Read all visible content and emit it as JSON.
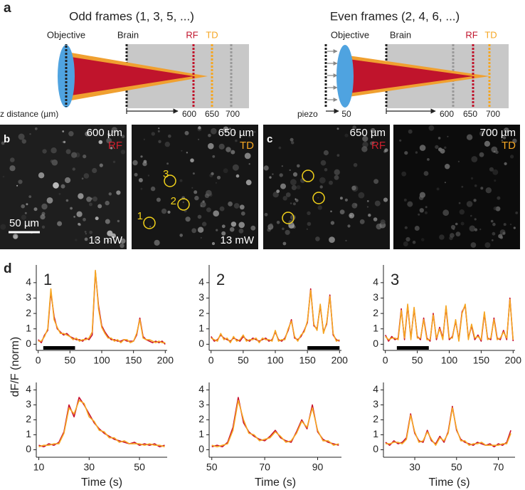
{
  "panel_a": {
    "label": "a",
    "odd": {
      "title": "Odd frames (1, 3, 5, ...)",
      "objective": "Objective",
      "brain": "Brain",
      "rf": "RF",
      "td": "TD",
      "axis_label": "z distance (µm)",
      "ticks": [
        "600",
        "650",
        "700"
      ]
    },
    "even": {
      "title": "Even frames (2, 4, 6, ...)",
      "objective": "Objective",
      "brain": "Brain",
      "rf": "RF",
      "td": "TD",
      "axis_label": "piezo",
      "ticks": [
        "50",
        "600",
        "650",
        "700"
      ]
    }
  },
  "panel_b": {
    "label": "b",
    "images": [
      {
        "depth": "600 µm",
        "channel": "RF",
        "power": "13 mW",
        "scale": "50 µm"
      },
      {
        "depth": "650 µm",
        "channel": "TD",
        "power": "13 mW",
        "rois": [
          "1",
          "2",
          "3"
        ]
      }
    ]
  },
  "panel_c": {
    "label": "c",
    "images": [
      {
        "depth": "650 µm",
        "channel": "RF"
      },
      {
        "depth": "700 µm",
        "channel": "TD"
      }
    ]
  },
  "panel_d": {
    "label": "d",
    "y_label": "dF/F (norm)"
  },
  "chart_data": [
    {
      "type": "line",
      "title": "1",
      "x": [
        0,
        5,
        10,
        15,
        20,
        25,
        30,
        35,
        40,
        45,
        50,
        55,
        60,
        65,
        70,
        75,
        80,
        85,
        90,
        95,
        100,
        105,
        110,
        115,
        120,
        125,
        130,
        135,
        140,
        145,
        150,
        155,
        160,
        165,
        170,
        175,
        180,
        185,
        190,
        195,
        200
      ],
      "series": [
        {
          "color": "#c8102e",
          "values": [
            0.3,
            0.1,
            0.6,
            0.9,
            3.4,
            1.8,
            1.0,
            0.8,
            0.6,
            0.7,
            0.5,
            0.4,
            0.3,
            0.3,
            0.2,
            0.4,
            0.3,
            0.6,
            4.7,
            2.5,
            1.2,
            0.8,
            0.5,
            0.3,
            0.3,
            0.2,
            0.2,
            0.3,
            0.2,
            0.2,
            0.2,
            0.6,
            1.7,
            0.5,
            0.3,
            0.2,
            0.1,
            0.2,
            0.1,
            0.2,
            0.0
          ]
        },
        {
          "color": "#f5a623",
          "values": [
            0.2,
            0.2,
            0.5,
            1.0,
            3.6,
            1.6,
            1.1,
            0.7,
            0.7,
            0.6,
            0.5,
            0.3,
            0.4,
            0.2,
            0.3,
            0.3,
            0.4,
            0.8,
            4.8,
            2.3,
            1.1,
            0.7,
            0.4,
            0.4,
            0.2,
            0.3,
            0.1,
            0.3,
            0.3,
            0.1,
            0.2,
            0.7,
            1.6,
            0.4,
            0.3,
            0.3,
            0.2,
            0.1,
            0.2,
            0.1,
            0.1
          ]
        }
      ],
      "xlim": [
        -3,
        203
      ],
      "ylim": [
        -0.4,
        5.15
      ],
      "xticks": [
        0,
        50,
        100,
        150,
        200
      ],
      "yticks": [
        0,
        1,
        2,
        3,
        4
      ],
      "highlight": [
        8,
        58
      ]
    },
    {
      "type": "line",
      "title": "2",
      "x": [
        0,
        5,
        10,
        15,
        20,
        25,
        30,
        35,
        40,
        45,
        50,
        55,
        60,
        65,
        70,
        75,
        80,
        85,
        90,
        95,
        100,
        105,
        110,
        115,
        120,
        125,
        130,
        135,
        140,
        145,
        150,
        155,
        160,
        165,
        170,
        175,
        180,
        185,
        190,
        195,
        200
      ],
      "series": [
        {
          "color": "#c8102e",
          "values": [
            0.5,
            0.2,
            0.3,
            0.6,
            0.4,
            0.3,
            0.2,
            0.4,
            0.3,
            0.2,
            0.5,
            0.3,
            0.2,
            0.4,
            0.3,
            0.2,
            0.3,
            0.4,
            0.2,
            0.3,
            0.8,
            0.3,
            0.2,
            0.4,
            0.9,
            1.6,
            0.4,
            0.3,
            0.5,
            0.9,
            1.4,
            3.6,
            1.2,
            1.0,
            2.5,
            0.8,
            1.3,
            3.2,
            0.6,
            0.3,
            0.2
          ]
        },
        {
          "color": "#f5a623",
          "values": [
            0.4,
            0.3,
            0.2,
            0.7,
            0.3,
            0.4,
            0.1,
            0.5,
            0.2,
            0.3,
            0.6,
            0.2,
            0.3,
            0.3,
            0.4,
            0.1,
            0.4,
            0.3,
            0.3,
            0.2,
            0.9,
            0.2,
            0.3,
            0.3,
            1.0,
            1.5,
            0.5,
            0.2,
            0.6,
            0.8,
            1.5,
            3.5,
            1.3,
            0.9,
            2.6,
            0.7,
            1.4,
            3.1,
            0.7,
            0.2,
            0.3
          ]
        }
      ],
      "xlim": [
        -3,
        203
      ],
      "ylim": [
        -0.4,
        5.15
      ],
      "xticks": [
        0,
        50,
        100,
        150,
        200
      ],
      "yticks": [
        0,
        1,
        2,
        3,
        4
      ],
      "highlight": [
        150,
        200
      ]
    },
    {
      "type": "line",
      "title": "3",
      "x": [
        0,
        5,
        10,
        15,
        20,
        25,
        30,
        35,
        40,
        45,
        50,
        55,
        60,
        65,
        70,
        75,
        80,
        85,
        90,
        95,
        100,
        105,
        110,
        115,
        120,
        125,
        130,
        135,
        140,
        145,
        150,
        155,
        160,
        165,
        170,
        175,
        180,
        185,
        190,
        195,
        200
      ],
      "series": [
        {
          "color": "#c8102e",
          "values": [
            0.6,
            0.2,
            0.5,
            0.3,
            0.4,
            2.3,
            0.3,
            2.5,
            0.4,
            2.3,
            0.5,
            0.3,
            1.7,
            0.4,
            0.2,
            2.0,
            0.3,
            1.1,
            0.4,
            2.4,
            0.3,
            0.5,
            1.5,
            0.3,
            2.1,
            2.5,
            0.4,
            1.2,
            0.3,
            0.6,
            0.2,
            2.0,
            0.4,
            0.3,
            1.7,
            0.4,
            0.3,
            0.9,
            0.3,
            3.0,
            0.2
          ]
        },
        {
          "color": "#f5a623",
          "values": [
            0.5,
            0.3,
            0.4,
            0.4,
            0.3,
            2.2,
            0.4,
            2.6,
            0.3,
            2.4,
            0.4,
            0.4,
            1.6,
            0.3,
            0.3,
            1.9,
            0.4,
            1.0,
            0.3,
            2.5,
            0.4,
            0.4,
            1.6,
            0.2,
            2.0,
            2.6,
            0.3,
            1.3,
            0.4,
            0.5,
            0.3,
            2.1,
            0.3,
            0.4,
            1.6,
            0.3,
            0.4,
            0.8,
            0.4,
            2.9,
            0.3
          ]
        }
      ],
      "xlim": [
        -3,
        203
      ],
      "ylim": [
        -0.4,
        5.15
      ],
      "xticks": [
        0,
        50,
        100,
        150,
        200
      ],
      "yticks": [
        0,
        1,
        2,
        3,
        4
      ],
      "highlight": [
        18,
        68
      ]
    },
    {
      "type": "line",
      "x_label": "Time (s)",
      "x": [
        10,
        12,
        14,
        16,
        18,
        20,
        22,
        24,
        26,
        28,
        30,
        32,
        34,
        36,
        38,
        40,
        42,
        44,
        46,
        48,
        50,
        52,
        54,
        56,
        58,
        60
      ],
      "series": [
        {
          "color": "#c8102e",
          "values": [
            0.3,
            0.2,
            0.4,
            0.3,
            0.5,
            1.2,
            3.0,
            2.2,
            3.5,
            3.0,
            2.4,
            1.8,
            1.4,
            1.1,
            0.9,
            0.7,
            0.6,
            0.5,
            0.4,
            0.5,
            0.3,
            0.4,
            0.3,
            0.4,
            0.2,
            0.3
          ]
        },
        {
          "color": "#f5a623",
          "values": [
            0.2,
            0.3,
            0.3,
            0.4,
            0.4,
            1.1,
            2.8,
            2.4,
            3.3,
            3.1,
            2.2,
            1.9,
            1.3,
            1.2,
            0.8,
            0.8,
            0.5,
            0.6,
            0.4,
            0.4,
            0.4,
            0.3,
            0.4,
            0.3,
            0.3,
            0.2
          ]
        }
      ],
      "xlim": [
        9,
        61
      ],
      "ylim": [
        -0.5,
        4.5
      ],
      "xticks": [
        10,
        30,
        50
      ],
      "yticks": [
        0,
        1,
        2,
        3,
        4
      ]
    },
    {
      "type": "line",
      "x_label": "Time (s)",
      "x": [
        50,
        52,
        54,
        56,
        58,
        60,
        62,
        64,
        66,
        68,
        70,
        72,
        74,
        76,
        78,
        80,
        82,
        84,
        86,
        88,
        90,
        92,
        94,
        96,
        98
      ],
      "series": [
        {
          "color": "#c8102e",
          "values": [
            0.2,
            0.3,
            0.2,
            0.5,
            1.5,
            3.5,
            1.8,
            1.2,
            0.9,
            0.7,
            0.6,
            0.9,
            1.3,
            0.8,
            0.6,
            0.5,
            1.2,
            2.0,
            1.4,
            3.0,
            1.2,
            0.7,
            0.5,
            0.4,
            0.3
          ]
        },
        {
          "color": "#f5a623",
          "values": [
            0.3,
            0.2,
            0.3,
            0.4,
            1.3,
            3.3,
            2.0,
            1.1,
            1.0,
            0.6,
            0.7,
            0.8,
            1.2,
            0.9,
            0.5,
            0.6,
            1.1,
            1.9,
            1.5,
            2.8,
            1.3,
            0.6,
            0.6,
            0.3,
            0.4
          ]
        }
      ],
      "xlim": [
        49,
        99
      ],
      "ylim": [
        -0.5,
        4.5
      ],
      "xticks": [
        50,
        70,
        90
      ],
      "yticks": [
        0,
        1,
        2,
        3,
        4
      ]
    },
    {
      "type": "line",
      "x_label": "Time (s)",
      "x": [
        16,
        18,
        20,
        22,
        24,
        26,
        28,
        30,
        32,
        34,
        36,
        38,
        40,
        42,
        44,
        46,
        48,
        50,
        52,
        54,
        56,
        58,
        60,
        62,
        64,
        66,
        68,
        70,
        72,
        74,
        76
      ],
      "series": [
        {
          "color": "#c8102e",
          "values": [
            0.5,
            0.3,
            0.6,
            0.4,
            0.5,
            0.8,
            2.4,
            1.1,
            0.6,
            0.5,
            1.3,
            0.6,
            0.4,
            0.9,
            0.5,
            1.2,
            2.9,
            1.3,
            0.7,
            0.5,
            0.4,
            0.3,
            0.5,
            0.4,
            0.3,
            0.4,
            0.2,
            0.4,
            0.3,
            0.5,
            1.3
          ]
        },
        {
          "color": "#f5a623",
          "values": [
            0.4,
            0.4,
            0.5,
            0.5,
            0.4,
            0.7,
            2.3,
            1.2,
            0.5,
            0.6,
            1.2,
            0.7,
            0.3,
            0.8,
            0.6,
            1.1,
            2.8,
            1.4,
            0.6,
            0.6,
            0.3,
            0.4,
            0.4,
            0.5,
            0.3,
            0.3,
            0.3,
            0.3,
            0.4,
            0.4,
            1.1
          ]
        }
      ],
      "xlim": [
        15,
        78
      ],
      "ylim": [
        -0.5,
        4.5
      ],
      "xticks": [
        30,
        50,
        70
      ],
      "yticks": [
        0,
        1,
        2,
        3,
        4
      ]
    }
  ]
}
